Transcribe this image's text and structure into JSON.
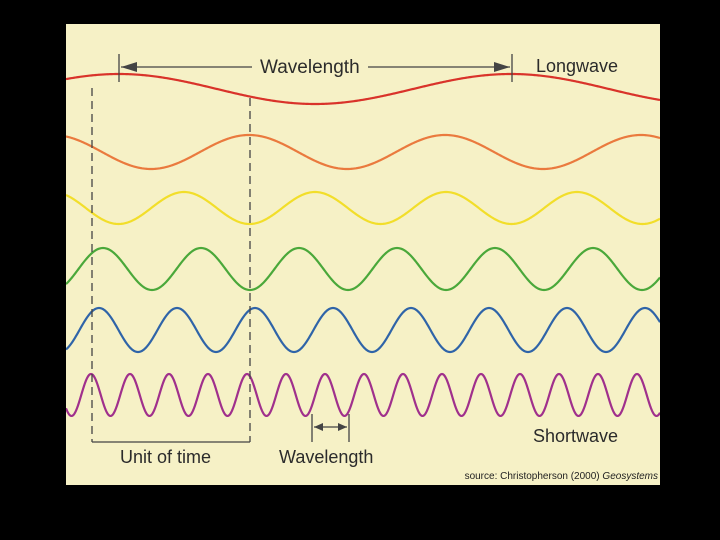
{
  "labels": {
    "wavelength_top": "Wavelength",
    "longwave": "Longwave",
    "shortwave": "Shortwave",
    "unit_of_time": "Unit of time",
    "wavelength_bottom": "Wavelength",
    "source_prefix": "source: Christopherson (2000) ",
    "source_title": "Geosystems"
  },
  "waves": [
    {
      "name": "red",
      "color": "#d9332a"
    },
    {
      "name": "orange",
      "color": "#ea7a3e"
    },
    {
      "name": "yellow",
      "color": "#f2de2a"
    },
    {
      "name": "green",
      "color": "#4aa83a"
    },
    {
      "name": "blue",
      "color": "#2f64a8"
    },
    {
      "name": "purple",
      "color": "#a0308c"
    }
  ],
  "colors": {
    "background": "#f6f1c6",
    "frame": "#000000",
    "annotation": "#444444"
  }
}
